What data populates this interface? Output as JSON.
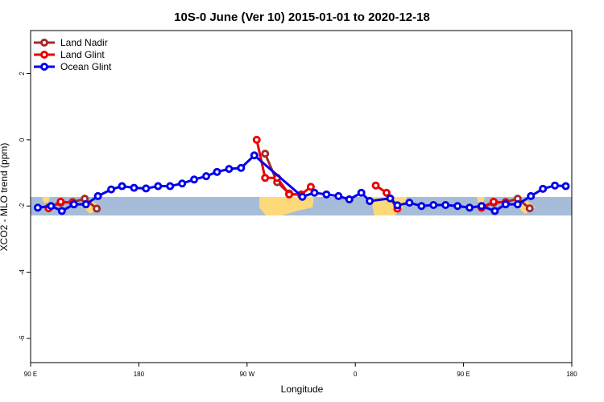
{
  "chart_data": {
    "type": "line",
    "title": "10S-0 June (Ver 10)   2015-01-01 to 2020-12-18",
    "x_label": "Longitude",
    "y_label": "XCO2 - MLO trend (ppm)",
    "xlim": [
      90,
      540
    ],
    "ylim": [
      -6.73,
      3.3
    ],
    "xticks": [
      {
        "value": 90,
        "label": "90 E"
      },
      180,
      {
        "value": 270,
        "label": "90 W"
      },
      {
        "value": 360,
        "label": "0"
      },
      {
        "value": 450,
        "label": "90 E"
      },
      {
        "value": 540,
        "label": "180"
      }
    ],
    "yticks": [
      -6,
      -4,
      -2,
      0,
      2
    ],
    "legend": "top-left",
    "series": [
      {
        "name": "Land Nadir",
        "color": "#a52a2a",
        "x": [
          105,
          115,
          125,
          135,
          145,
          null,
          285,
          295,
          305,
          315,
          null,
          465,
          475,
          485,
          495,
          505
        ],
        "values": [
          -2.05,
          -1.9,
          -1.88,
          -1.78,
          -2.08,
          null,
          -0.42,
          -1.28,
          -1.62,
          -1.67,
          null,
          -2.05,
          -1.9,
          -1.88,
          -1.78,
          -2.07
        ]
      },
      {
        "name": "Land Glint",
        "color": "#ee0000",
        "x": [
          105,
          115,
          125,
          null,
          278,
          285,
          295,
          305,
          315,
          323,
          null,
          377,
          386,
          395,
          null,
          465,
          475,
          485
        ],
        "values": [
          -2.07,
          -1.87,
          -1.9,
          null,
          0.0,
          -1.15,
          -1.15,
          -1.65,
          -1.65,
          -1.42,
          null,
          -1.38,
          -1.6,
          -2.08,
          null,
          -2.05,
          -1.87,
          -1.9
        ]
      },
      {
        "name": "Ocean Glint",
        "color": "#0000ee",
        "x": [
          96,
          107,
          116,
          126,
          136,
          146,
          157,
          166,
          176,
          186,
          196,
          206,
          216,
          226,
          236,
          245,
          255,
          265,
          276,
          316,
          326,
          336,
          346,
          355,
          365,
          372,
          389,
          395,
          405,
          415,
          425,
          435,
          445,
          455,
          465,
          476,
          485,
          495,
          506,
          516,
          526,
          535
        ],
        "values": [
          -2.05,
          -2.0,
          -2.15,
          -1.95,
          -1.95,
          -1.7,
          -1.5,
          -1.4,
          -1.45,
          -1.47,
          -1.4,
          -1.4,
          -1.32,
          -1.2,
          -1.1,
          -0.97,
          -0.88,
          -0.85,
          -0.47,
          -1.72,
          -1.6,
          -1.65,
          -1.7,
          -1.8,
          -1.6,
          -1.85,
          -1.77,
          -1.98,
          -1.9,
          -2.0,
          -1.97,
          -1.97,
          -2.0,
          -2.05,
          -2.0,
          -2.15,
          -1.95,
          -1.95,
          -1.7,
          -1.48,
          -1.38,
          -1.4
        ]
      }
    ]
  }
}
